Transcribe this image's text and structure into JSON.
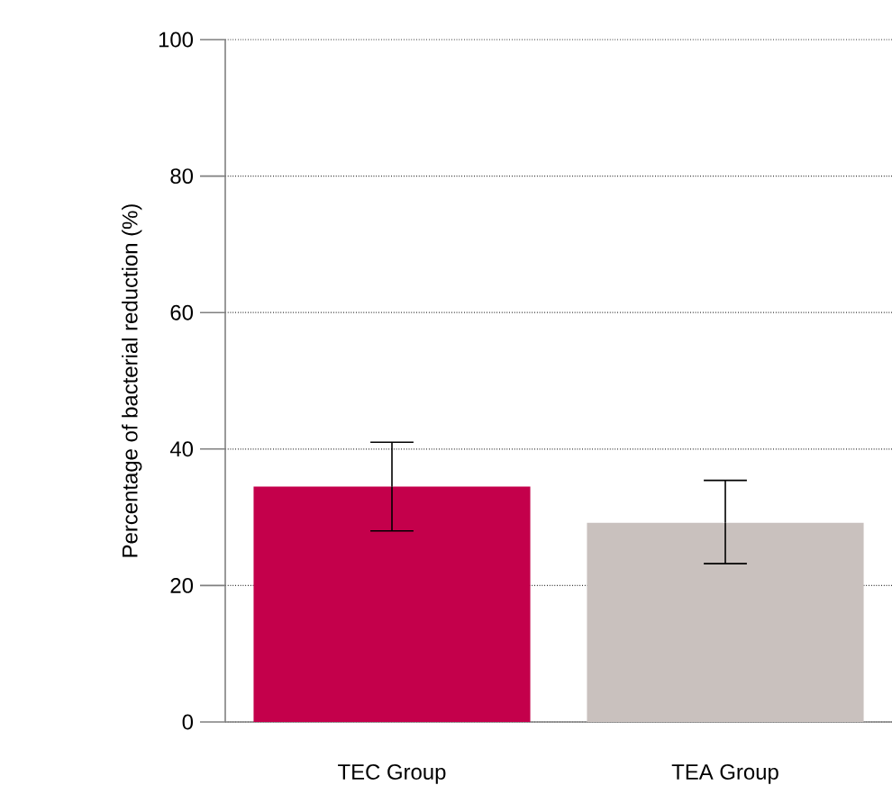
{
  "chart_data": {
    "type": "bar",
    "ylabel": "Percentage of bacterial reduction (%)",
    "categories": [
      "TEC Group",
      "TEA Group"
    ],
    "values": [
      34.5,
      29.2
    ],
    "colors": [
      "#c4004b",
      "#c9c1be"
    ],
    "errors": [
      [
        28.0,
        41.0
      ],
      [
        23.2,
        35.4
      ]
    ],
    "ylim": [
      0,
      100
    ],
    "yticks": [
      0,
      20,
      40,
      60,
      80,
      100
    ],
    "grid": "y"
  }
}
